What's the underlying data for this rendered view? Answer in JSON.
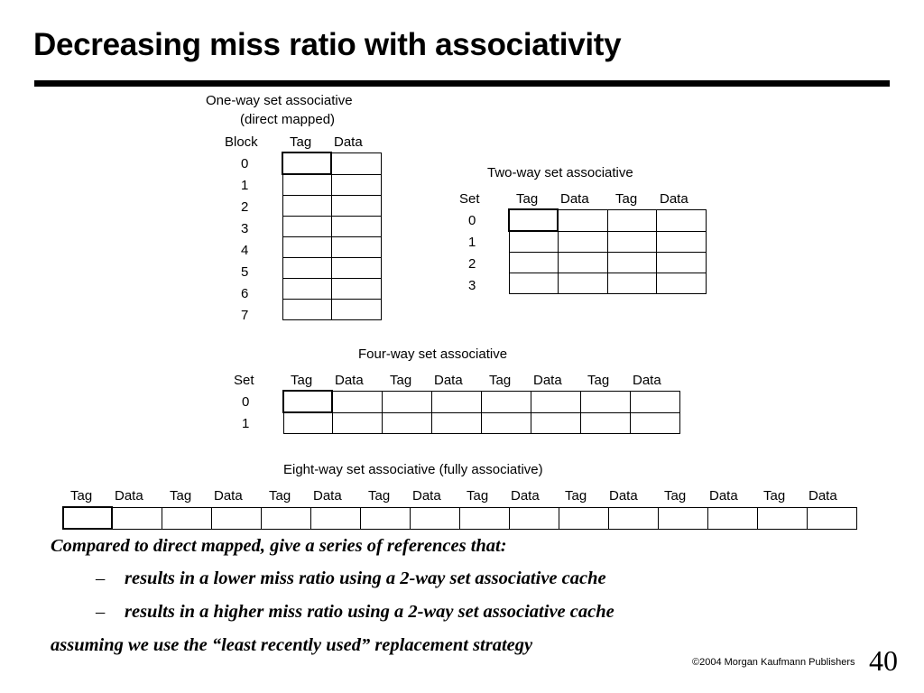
{
  "slide": {
    "title": "Decreasing miss ratio with associativity",
    "copyright": "©2004 Morgan Kaufmann Publishers",
    "page_number": "40"
  },
  "one_way": {
    "title_line1": "One-way set associative",
    "title_line2": "(direct mapped)",
    "header_block": "Block",
    "header_tag": "Tag",
    "header_data": "Data",
    "rows": [
      "0",
      "1",
      "2",
      "3",
      "4",
      "5",
      "6",
      "7"
    ]
  },
  "two_way": {
    "title": "Two-way set associative",
    "header_set": "Set",
    "header_tag": "Tag",
    "header_data": "Data",
    "rows": [
      "0",
      "1",
      "2",
      "3"
    ]
  },
  "four_way": {
    "title": "Four-way set associative",
    "header_set": "Set",
    "header_tag": "Tag",
    "header_data": "Data",
    "rows": [
      "0",
      "1"
    ]
  },
  "eight_way": {
    "title": "Eight-way set associative (fully associative)",
    "header_tag": "Tag",
    "header_data": "Data"
  },
  "text": {
    "line1": "Compared to direct mapped, give a series of references that:",
    "dash": "–",
    "bullet1": "results in a lower miss ratio using a 2-way set associative cache",
    "bullet2": "results in a higher miss ratio using a 2-way set associative cache",
    "line4": "assuming we use the “least recently used” replacement strategy"
  }
}
